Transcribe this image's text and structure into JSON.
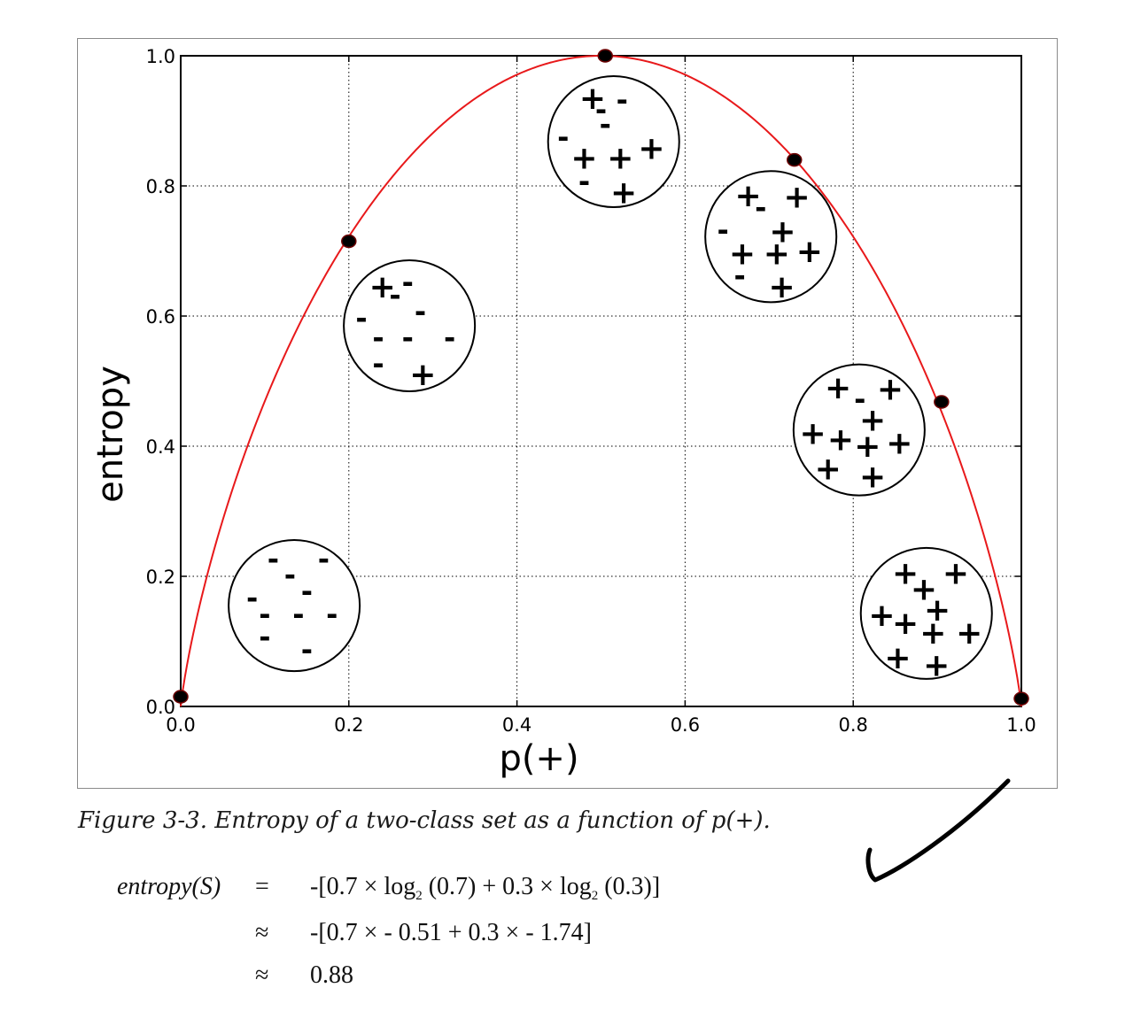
{
  "chart_data": {
    "type": "line",
    "xlabel": "p(+)",
    "ylabel": "entropy",
    "xlim": [
      0.0,
      1.0
    ],
    "ylim": [
      0.0,
      1.0
    ],
    "x_ticks": [
      "0.0",
      "0.2",
      "0.4",
      "0.6",
      "0.8",
      "1.0"
    ],
    "y_ticks": [
      "0.0",
      "0.2",
      "0.4",
      "0.6",
      "0.8",
      "1.0"
    ],
    "grid": true,
    "line_color": "#e8191b",
    "series": [
      {
        "x": [
          0.0,
          0.01,
          0.02,
          0.05,
          0.1,
          0.15,
          0.2,
          0.25,
          0.3,
          0.35,
          0.4,
          0.45,
          0.5,
          0.55,
          0.6,
          0.65,
          0.7,
          0.75,
          0.8,
          0.85,
          0.9,
          0.95,
          0.98,
          0.99,
          1.0
        ],
        "y": [
          0.0,
          0.081,
          0.141,
          0.286,
          0.469,
          0.61,
          0.722,
          0.811,
          0.881,
          0.934,
          0.971,
          0.993,
          1.0,
          0.993,
          0.971,
          0.934,
          0.881,
          0.811,
          0.722,
          0.61,
          0.469,
          0.286,
          0.141,
          0.081,
          0.0
        ]
      }
    ],
    "points": [
      {
        "x": 0.0,
        "y": 0.015
      },
      {
        "x": 0.2,
        "y": 0.715
      },
      {
        "x": 0.505,
        "y": 1.0
      },
      {
        "x": 0.73,
        "y": 0.84
      },
      {
        "x": 0.905,
        "y": 0.468
      },
      {
        "x": 1.0,
        "y": 0.012
      }
    ],
    "point_color": "#000000",
    "sets": [
      {
        "x": 0.135,
        "y": 0.155,
        "r": 0.078,
        "marks": [
          [
            "-",
            0.11,
            0.22
          ],
          [
            "-",
            0.17,
            0.22
          ],
          [
            "-",
            0.13,
            0.195
          ],
          [
            "-",
            0.15,
            0.17
          ],
          [
            "-",
            0.085,
            0.16
          ],
          [
            "-",
            0.1,
            0.135
          ],
          [
            "-",
            0.14,
            0.135
          ],
          [
            "-",
            0.18,
            0.135
          ],
          [
            "-",
            0.1,
            0.1
          ],
          [
            "-",
            0.15,
            0.08
          ]
        ]
      },
      {
        "x": 0.272,
        "y": 0.585,
        "r": 0.078,
        "marks": [
          [
            "+",
            0.24,
            0.645
          ],
          [
            "-",
            0.27,
            0.645
          ],
          [
            "-",
            0.255,
            0.625
          ],
          [
            "-",
            0.285,
            0.6
          ],
          [
            "-",
            0.215,
            0.59
          ],
          [
            "-",
            0.235,
            0.56
          ],
          [
            "-",
            0.27,
            0.56
          ],
          [
            "-",
            0.32,
            0.56
          ],
          [
            "-",
            0.235,
            0.52
          ],
          [
            "+",
            0.288,
            0.51
          ]
        ]
      },
      {
        "x": 0.515,
        "y": 0.868,
        "r": 0.078,
        "marks": [
          [
            "+",
            0.49,
            0.935
          ],
          [
            "-",
            0.525,
            0.925
          ],
          [
            "-",
            0.5,
            0.91
          ],
          [
            "-",
            0.505,
            0.888
          ],
          [
            "-",
            0.455,
            0.868
          ],
          [
            "+",
            0.56,
            0.858
          ],
          [
            "+",
            0.48,
            0.843
          ],
          [
            "+",
            0.523,
            0.843
          ],
          [
            "-",
            0.48,
            0.8
          ],
          [
            "+",
            0.527,
            0.79
          ]
        ]
      },
      {
        "x": 0.702,
        "y": 0.722,
        "r": 0.078,
        "marks": [
          [
            "+",
            0.675,
            0.785
          ],
          [
            "-",
            0.69,
            0.76
          ],
          [
            "+",
            0.733,
            0.783
          ],
          [
            "+",
            0.716,
            0.73
          ],
          [
            "-",
            0.645,
            0.725
          ],
          [
            "+",
            0.668,
            0.696
          ],
          [
            "+",
            0.709,
            0.696
          ],
          [
            "+",
            0.748,
            0.699
          ],
          [
            "-",
            0.665,
            0.655
          ],
          [
            "+",
            0.715,
            0.645
          ]
        ]
      },
      {
        "x": 0.807,
        "y": 0.425,
        "r": 0.078,
        "marks": [
          [
            "+",
            0.782,
            0.49
          ],
          [
            "-",
            0.808,
            0.465
          ],
          [
            "+",
            0.844,
            0.488
          ],
          [
            "+",
            0.823,
            0.44
          ],
          [
            "+",
            0.752,
            0.42
          ],
          [
            "+",
            0.785,
            0.41
          ],
          [
            "+",
            0.817,
            0.4
          ],
          [
            "+",
            0.855,
            0.405
          ],
          [
            "+",
            0.77,
            0.365
          ],
          [
            "+",
            0.823,
            0.353
          ]
        ]
      },
      {
        "x": 0.887,
        "y": 0.143,
        "r": 0.078,
        "marks": [
          [
            "+",
            0.862,
            0.205
          ],
          [
            "+",
            0.922,
            0.205
          ],
          [
            "+",
            0.884,
            0.18
          ],
          [
            "+",
            0.9,
            0.148
          ],
          [
            "+",
            0.834,
            0.14
          ],
          [
            "+",
            0.862,
            0.128
          ],
          [
            "+",
            0.895,
            0.113
          ],
          [
            "+",
            0.938,
            0.113
          ],
          [
            "+",
            0.853,
            0.075
          ],
          [
            "+",
            0.899,
            0.063
          ]
        ]
      }
    ]
  },
  "caption": "Figure 3-3. Entropy of a two-class set as a function of p(+).",
  "equation": {
    "lhs": "entropy(S)",
    "rows": [
      {
        "op": "=",
        "parts": [
          "-[0.7 × log",
          "2",
          " (0.7) + 0.3 × log",
          "2",
          " (0.3)]"
        ]
      },
      {
        "op": "≈",
        "parts": [
          "-[0.7 × - 0.51 + 0.3 × - 1.74]"
        ]
      },
      {
        "op": "≈",
        "parts": [
          "0.88"
        ]
      }
    ]
  },
  "annotation": {
    "type": "handwritten-checkmark",
    "stroke_color": "#000000"
  }
}
